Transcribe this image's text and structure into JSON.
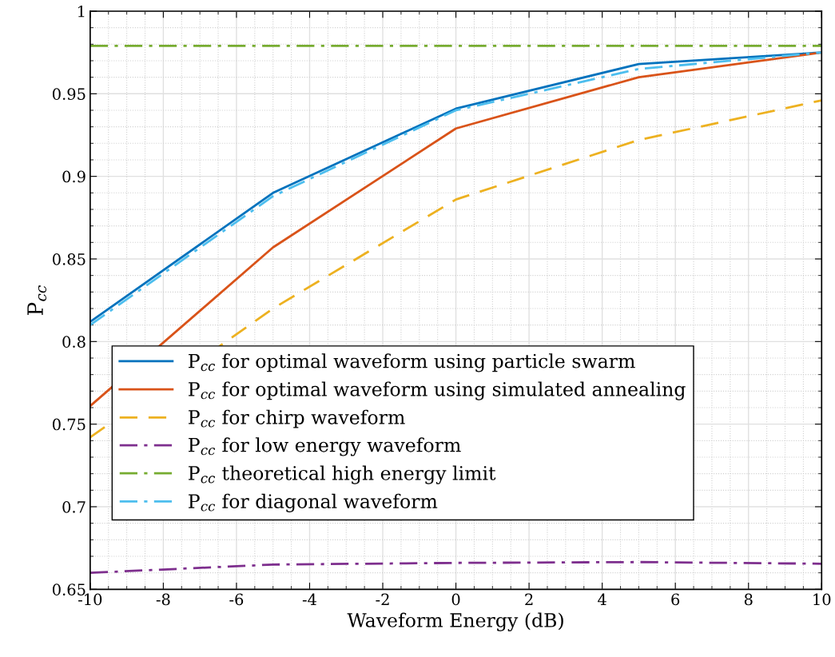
{
  "chart_data": {
    "type": "line",
    "xlabel": "Waveform Energy (dB)",
    "ylabel": "P$_{cc}$",
    "x": [
      -10,
      -5,
      0,
      5,
      10
    ],
    "series": [
      {
        "name": "P$_{cc}$ for optimal waveform using particle swarm",
        "color": "#0072bd",
        "line_style": "solid",
        "values": [
          0.812,
          0.89,
          0.941,
          0.968,
          0.975
        ]
      },
      {
        "name": "P$_{cc}$ for optimal waveform using simulated annealing",
        "color": "#d95319",
        "line_style": "solid",
        "values": [
          0.761,
          0.857,
          0.929,
          0.96,
          0.975
        ]
      },
      {
        "name": "P$_{cc}$ for chirp waveform",
        "color": "#edb120",
        "line_style": "dashed",
        "values": [
          0.742,
          0.82,
          0.886,
          0.922,
          0.946
        ]
      },
      {
        "name": "P$_{cc}$ for low energy waveform",
        "color": "#7e2f8e",
        "line_style": "dashdot",
        "values": [
          0.66,
          0.665,
          0.666,
          0.6665,
          0.6655
        ]
      },
      {
        "name": "P$_{cc}$ theoretical high energy limit",
        "color": "#77ac30",
        "line_style": "dashdot",
        "values": [
          0.979,
          0.979,
          0.979,
          0.979,
          0.979
        ]
      },
      {
        "name": "P$_{cc}$ for diagonal waveform",
        "color": "#4dbeee",
        "line_style": "dashdot",
        "values": [
          0.81,
          0.888,
          0.94,
          0.965,
          0.975
        ]
      }
    ],
    "xlim": [
      -10,
      10
    ],
    "xticks": [
      -10,
      -8,
      -6,
      -4,
      -2,
      0,
      2,
      4,
      6,
      8,
      10
    ],
    "ylim": [
      0.65,
      1
    ],
    "yticks": [
      0.65,
      {
        "value": 0.7,
        "label": "0.7"
      },
      0.75,
      {
        "value": 0.8,
        "label": "0.8"
      },
      0.85,
      {
        "value": 0.9,
        "label": "0.9"
      },
      0.95,
      {
        "value": 1,
        "label": "1"
      }
    ],
    "grid": true,
    "legend": "bottom left",
    "marker": "none"
  }
}
